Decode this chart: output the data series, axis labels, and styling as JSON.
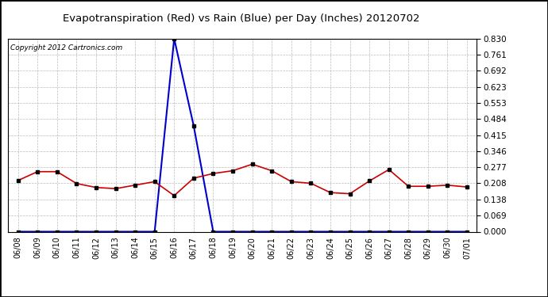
{
  "title": "Evapotranspiration (Red) vs Rain (Blue) per Day (Inches) 20120702",
  "copyright": "Copyright 2012 Cartronics.com",
  "x_labels": [
    "06/08",
    "06/09",
    "06/10",
    "06/11",
    "06/12",
    "06/13",
    "06/14",
    "06/15",
    "06/16",
    "06/17",
    "06/18",
    "06/19",
    "06/20",
    "06/21",
    "06/22",
    "06/23",
    "06/24",
    "06/25",
    "06/26",
    "06/27",
    "06/28",
    "06/29",
    "06/30",
    "07/01"
  ],
  "red_data": [
    0.22,
    0.258,
    0.258,
    0.207,
    0.19,
    0.185,
    0.2,
    0.215,
    0.155,
    0.23,
    0.25,
    0.262,
    0.29,
    0.262,
    0.215,
    0.208,
    0.168,
    0.163,
    0.218,
    0.267,
    0.195,
    0.195,
    0.2,
    0.192
  ],
  "blue_data": [
    0.0,
    0.0,
    0.0,
    0.0,
    0.0,
    0.0,
    0.0,
    0.0,
    0.83,
    0.455,
    0.0,
    0.0,
    0.0,
    0.0,
    0.0,
    0.0,
    0.0,
    0.0,
    0.0,
    0.0,
    0.0,
    0.0,
    0.0,
    0.0
  ],
  "y_ticks": [
    0.0,
    0.069,
    0.138,
    0.208,
    0.277,
    0.346,
    0.415,
    0.484,
    0.553,
    0.623,
    0.692,
    0.761,
    0.83
  ],
  "y_max": 0.83,
  "y_min": 0.0,
  "red_color": "#cc0000",
  "blue_color": "#0000cc",
  "marker_color": "#000000",
  "bg_color": "#ffffff",
  "grid_color": "#bbbbbb",
  "title_fontsize": 9.5,
  "copyright_fontsize": 6.5
}
